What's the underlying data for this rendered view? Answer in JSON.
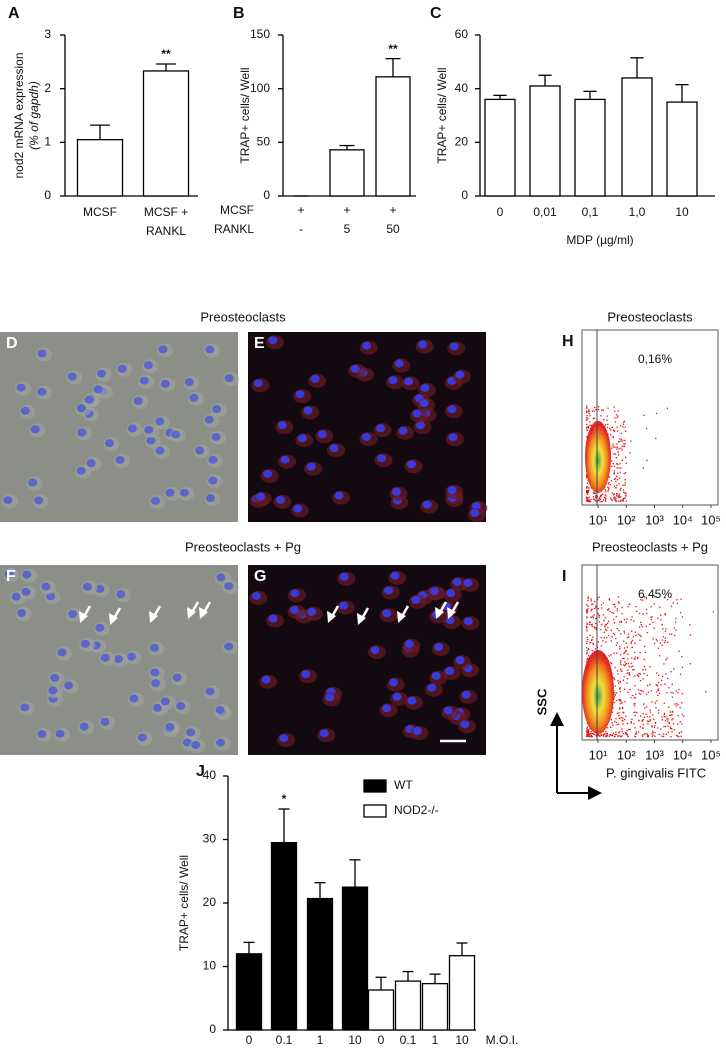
{
  "chart_data": [
    {
      "type": "bar",
      "panel": "A",
      "ylabel": [
        "nod2 mRNA expression",
        "(% of gapdh)"
      ],
      "categories": [
        [
          "MCSF"
        ],
        [
          "MCSF +",
          "RANKL"
        ]
      ],
      "values": [
        1.05,
        2.33
      ],
      "errors": [
        0.27,
        0.13
      ],
      "annotations": [
        null,
        "**"
      ],
      "ylim": [
        0,
        3
      ],
      "yticks": [
        0,
        1,
        2,
        3
      ],
      "color": "#ffffff"
    },
    {
      "type": "bar",
      "panel": "B",
      "ylabel": "TRAP+ cells/ Well",
      "category_row_labels": [
        "MCSF",
        "RANKL"
      ],
      "categories": [
        [
          "+",
          "-"
        ],
        [
          "+",
          "5"
        ],
        [
          "+",
          "50"
        ]
      ],
      "values": [
        0,
        43,
        111
      ],
      "errors": [
        0,
        4,
        17
      ],
      "annotations": [
        null,
        null,
        "**"
      ],
      "ylim": [
        0,
        150
      ],
      "yticks": [
        0,
        50,
        100,
        150
      ],
      "color": "#ffffff"
    },
    {
      "type": "bar",
      "panel": "C",
      "ylabel": "TRAP+ cells/ Well",
      "xlabel": "MDP (µg/ml)",
      "categories": [
        "0",
        "0,01",
        "0,1",
        "1,0",
        "10"
      ],
      "values": [
        36,
        41,
        36,
        44,
        35
      ],
      "errors": [
        1.5,
        4,
        3,
        7.5,
        6.5
      ],
      "ylim": [
        0,
        60
      ],
      "yticks": [
        0,
        20,
        40,
        60
      ],
      "color": "#ffffff"
    },
    {
      "type": "bar",
      "panel": "J",
      "ylabel": "TRAP+ cells/ Well",
      "xlabel": "M.O.I.",
      "categories": [
        "0",
        "0.1",
        "1",
        "10"
      ],
      "series": [
        {
          "name": "WT",
          "color": "#000000",
          "values": [
            12,
            29.5,
            20.7,
            22.5
          ],
          "errors": [
            1.8,
            5.3,
            2.5,
            4.3
          ],
          "annotations": [
            null,
            "*",
            null,
            null
          ]
        },
        {
          "name": "NOD2-/-",
          "color": "#ffffff",
          "values": [
            6.3,
            7.7,
            7.3,
            11.7
          ],
          "errors": [
            2,
            1.5,
            1.5,
            2
          ]
        }
      ],
      "ylim": [
        0,
        40
      ],
      "yticks": [
        0,
        10,
        20,
        30,
        40
      ]
    }
  ],
  "image_panels": [
    {
      "letter": "D"
    },
    {
      "letter": "E"
    },
    {
      "letter": "F"
    },
    {
      "letter": "G"
    }
  ],
  "row_titles": [
    "Preosteoclasts",
    "Preosteoclasts + Pg"
  ],
  "flow_panels": [
    {
      "letter": "H",
      "title": "Preosteoclasts",
      "percent": "0,16%"
    },
    {
      "letter": "I",
      "title": "Preosteoclasts + Pg",
      "percent": "6,45%",
      "ylabel": "SSC",
      "xlabel": "P. gingivalis FITC"
    }
  ],
  "flow_xlim": [
    2.7,
    178000
  ],
  "flow_xticks": [
    {
      "value": 10,
      "label": "10¹"
    },
    {
      "value": 100,
      "label": "10²"
    },
    {
      "value": 1000,
      "label": "10³"
    },
    {
      "value": 10000,
      "label": "10⁴"
    },
    {
      "value": 100000,
      "label": "10⁵"
    }
  ]
}
